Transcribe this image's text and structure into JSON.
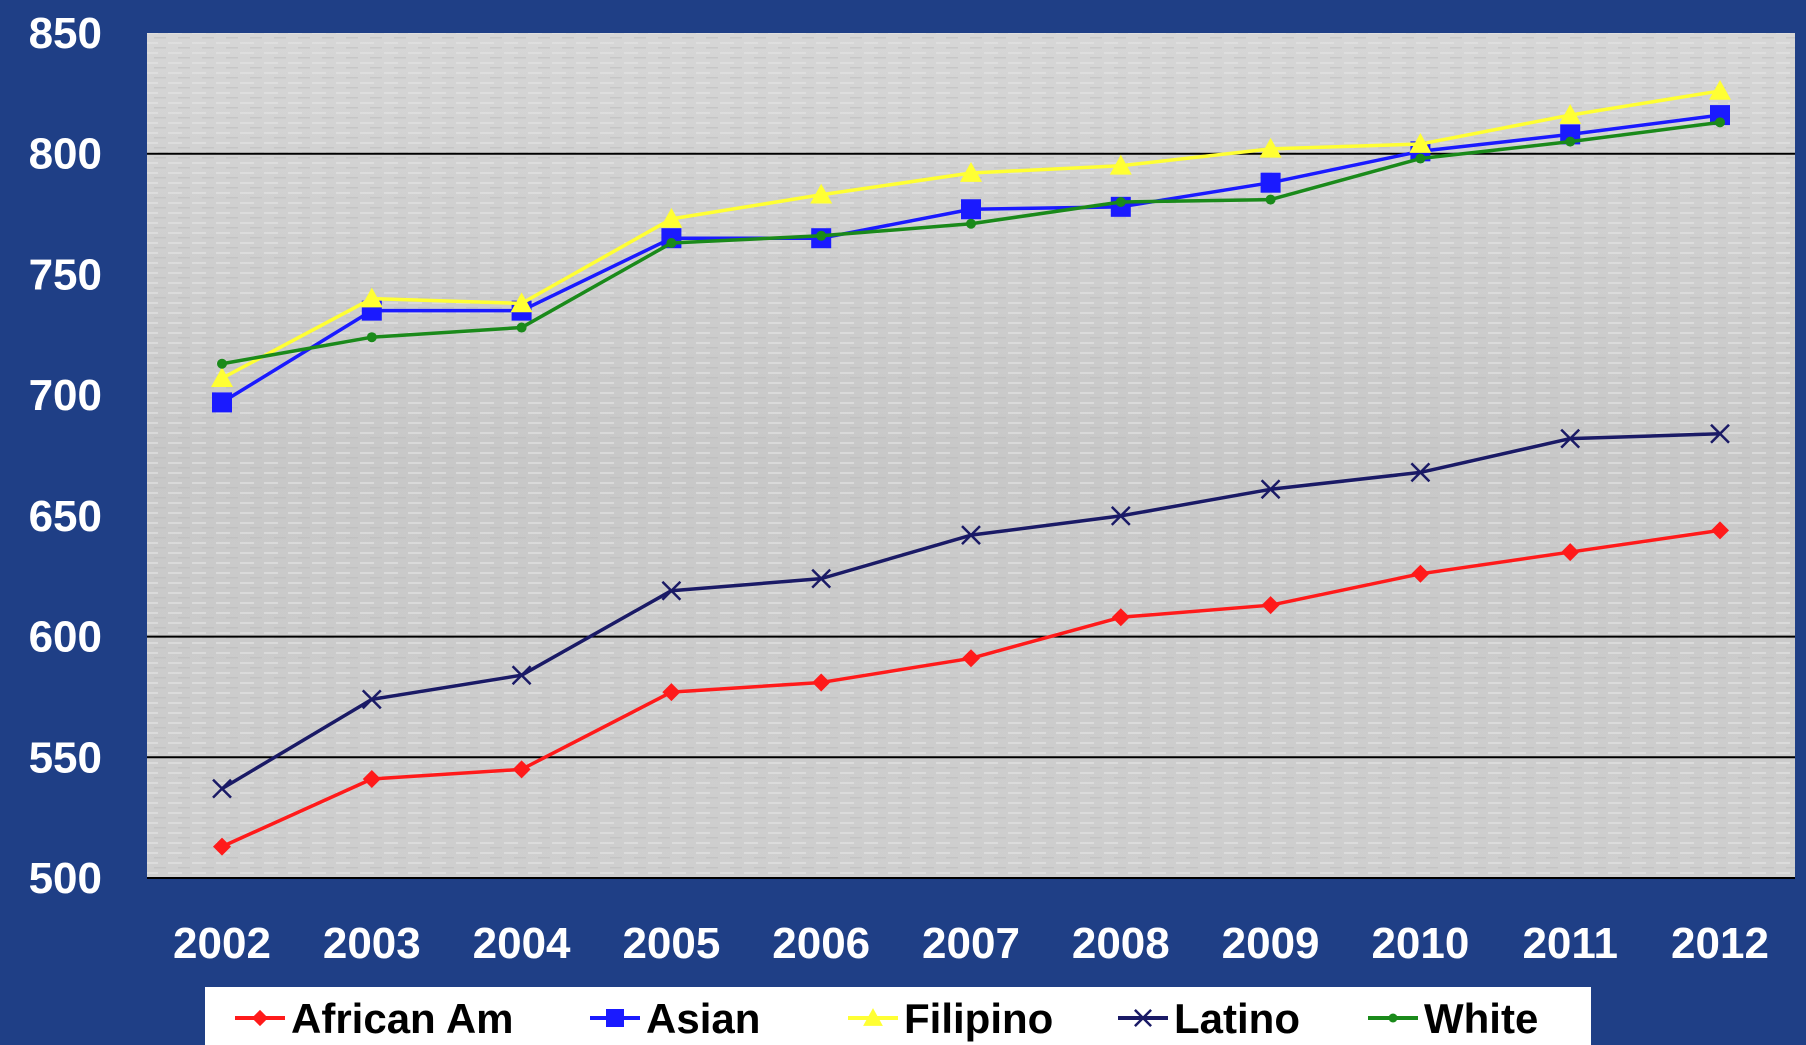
{
  "chart_data": {
    "type": "line",
    "title": "",
    "xlabel": "",
    "ylabel": "",
    "categories": [
      "2002",
      "2003",
      "2004",
      "2005",
      "2006",
      "2007",
      "2008",
      "2009",
      "2010",
      "2011",
      "2012"
    ],
    "ylim": [
      500,
      850
    ],
    "yticks": [
      "850",
      "800",
      "750",
      "700",
      "650",
      "600",
      "550",
      "500"
    ],
    "grid": "horizontal lines at 550, 600, 800",
    "legend_position": "bottom",
    "series": [
      {
        "name": "African Am",
        "color": "#ff1a1a",
        "marker": "diamond",
        "values": [
          513,
          541,
          545,
          577,
          581,
          591,
          608,
          613,
          626,
          635,
          644
        ]
      },
      {
        "name": "Asian",
        "color": "#1a1aff",
        "marker": "square",
        "values": [
          697,
          735,
          735,
          765,
          765,
          777,
          778,
          788,
          801,
          808,
          816
        ]
      },
      {
        "name": "Filipino",
        "color": "#ffff33",
        "marker": "triangle",
        "values": [
          707,
          740,
          738,
          773,
          783,
          792,
          795,
          802,
          804,
          816,
          826
        ]
      },
      {
        "name": "Latino",
        "color": "#1a1a66",
        "marker": "x",
        "values": [
          537,
          574,
          584,
          619,
          624,
          642,
          650,
          661,
          668,
          682,
          684
        ]
      },
      {
        "name": "White",
        "color": "#1a8a1a",
        "marker": "circle",
        "values": [
          713,
          724,
          728,
          763,
          766,
          771,
          780,
          781,
          798,
          805,
          813
        ]
      }
    ]
  }
}
